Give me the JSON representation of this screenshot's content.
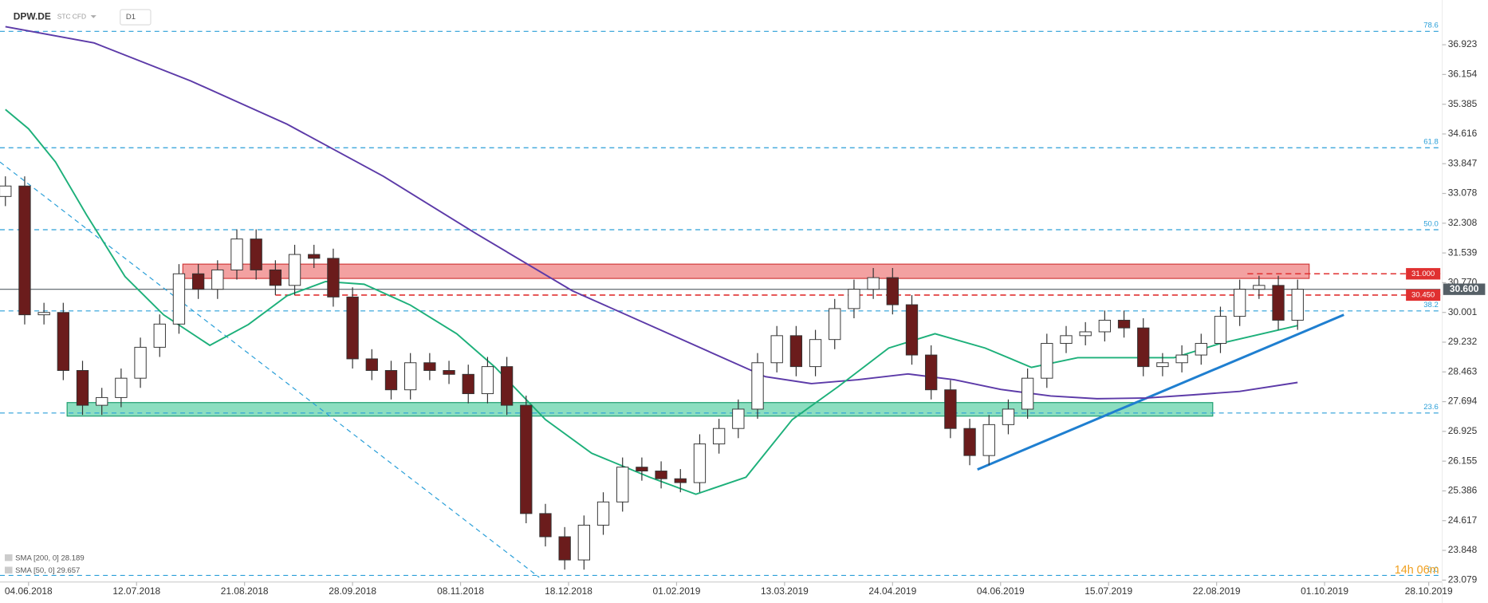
{
  "header": {
    "symbol": "DPW.DE",
    "instrument": "STC CFD",
    "timeframe": "D1"
  },
  "chart_data": {
    "type": "candlestick",
    "xlim": [
      -7.4,
      366
    ],
    "ylim": [
      23.03,
      38.08
    ],
    "xticks": [
      {
        "value": 0,
        "label": "04.06.2018"
      },
      {
        "value": 28,
        "label": "12.07.2018"
      },
      {
        "value": 56,
        "label": "21.08.2018"
      },
      {
        "value": 84,
        "label": "28.09.2018"
      },
      {
        "value": 112,
        "label": "08.11.2018"
      },
      {
        "value": 140,
        "label": "18.12.2018"
      },
      {
        "value": 168,
        "label": "01.02.2019"
      },
      {
        "value": 196,
        "label": "13.03.2019"
      },
      {
        "value": 224,
        "label": "24.04.2019"
      },
      {
        "value": 252,
        "label": "04.06.2019"
      },
      {
        "value": 280,
        "label": "15.07.2019"
      },
      {
        "value": 308,
        "label": "22.08.2019"
      },
      {
        "value": 336,
        "label": "01.10.2019"
      },
      {
        "value": 363,
        "label": "28.10.2019"
      }
    ],
    "yticks": [
      23.079,
      23.848,
      24.617,
      25.386,
      26.155,
      26.925,
      27.694,
      28.463,
      29.232,
      30.001,
      {
        "value": 30.77,
        "label": "30.770"
      },
      31.539,
      32.308,
      33.078,
      33.847,
      34.616,
      35.385,
      36.154,
      36.923
    ],
    "x": [
      -6,
      -1,
      4,
      9,
      14,
      19,
      24,
      29,
      34,
      39,
      44,
      49,
      54,
      59,
      64,
      69,
      74,
      79,
      84,
      89,
      94,
      99,
      104,
      109,
      114,
      119,
      124,
      129,
      134,
      139,
      144,
      149,
      154,
      159,
      164,
      169,
      174,
      179,
      184,
      189,
      194,
      199,
      204,
      209,
      214,
      219,
      224,
      229,
      234,
      239,
      244,
      249,
      254,
      259,
      264,
      269,
      274,
      279,
      284,
      289,
      294,
      299,
      304,
      309,
      314,
      319,
      324,
      329
    ],
    "open": [
      33.0,
      33.27,
      29.94,
      30.0,
      28.5,
      27.6,
      27.8,
      28.3,
      29.1,
      29.7,
      31.0,
      30.6,
      31.1,
      31.9,
      31.1,
      30.7,
      31.5,
      31.4,
      30.4,
      28.8,
      28.5,
      28.0,
      28.7,
      28.5,
      28.4,
      27.9,
      28.6,
      27.6,
      24.8,
      24.2,
      23.6,
      24.5,
      25.1,
      26.0,
      25.9,
      25.7,
      25.6,
      26.6,
      27.0,
      27.5,
      28.7,
      29.4,
      28.6,
      29.3,
      30.1,
      30.6,
      30.9,
      30.2,
      28.9,
      28.0,
      27.0,
      26.3,
      27.1,
      27.5,
      28.3,
      29.2,
      29.4,
      29.5,
      29.8,
      29.6,
      28.6,
      28.7,
      28.9,
      29.2,
      29.9,
      30.6,
      30.7,
      29.8
    ],
    "high": [
      33.52,
      33.52,
      30.25,
      30.25,
      28.75,
      28.05,
      28.55,
      29.35,
      29.95,
      31.25,
      31.25,
      31.35,
      32.15,
      32.15,
      31.35,
      31.75,
      31.75,
      31.65,
      30.65,
      29.05,
      28.75,
      28.95,
      28.95,
      28.75,
      28.65,
      28.85,
      28.85,
      27.85,
      25.05,
      24.45,
      24.75,
      25.35,
      26.25,
      26.25,
      26.15,
      25.95,
      26.85,
      27.25,
      27.75,
      28.95,
      29.65,
      29.65,
      29.55,
      30.35,
      30.85,
      31.15,
      31.15,
      30.45,
      29.15,
      28.25,
      27.25,
      27.35,
      27.75,
      28.55,
      29.45,
      29.65,
      29.75,
      30.05,
      30.05,
      29.85,
      28.95,
      29.15,
      29.45,
      30.15,
      30.85,
      30.95,
      30.95,
      30.85
    ],
    "low": [
      32.75,
      29.69,
      29.69,
      28.25,
      27.35,
      27.35,
      27.55,
      28.05,
      28.85,
      29.45,
      30.35,
      30.35,
      30.85,
      30.85,
      30.45,
      30.45,
      31.15,
      30.15,
      28.55,
      28.25,
      27.75,
      27.75,
      28.25,
      28.15,
      27.65,
      27.65,
      27.35,
      24.55,
      23.95,
      23.35,
      23.35,
      24.25,
      24.85,
      25.65,
      25.45,
      25.35,
      25.35,
      26.35,
      26.75,
      27.25,
      28.45,
      28.35,
      28.35,
      29.05,
      29.85,
      30.35,
      29.95,
      28.65,
      27.75,
      26.75,
      26.05,
      26.05,
      26.85,
      27.25,
      28.05,
      28.95,
      29.15,
      29.25,
      29.35,
      28.35,
      28.35,
      28.45,
      28.65,
      28.95,
      29.65,
      30.35,
      29.55,
      29.55
    ],
    "close": [
      33.27,
      29.94,
      30.0,
      28.5,
      27.6,
      27.8,
      28.3,
      29.1,
      29.7,
      31.0,
      30.6,
      31.1,
      31.9,
      31.1,
      30.7,
      31.5,
      31.4,
      30.4,
      28.8,
      28.5,
      28.0,
      28.7,
      28.5,
      28.4,
      27.9,
      28.6,
      27.6,
      24.8,
      24.2,
      23.6,
      24.5,
      25.1,
      26.0,
      25.9,
      25.7,
      25.6,
      26.6,
      27.0,
      27.5,
      28.7,
      29.4,
      28.6,
      29.3,
      30.1,
      30.6,
      30.9,
      30.2,
      28.9,
      28.0,
      27.0,
      26.3,
      27.1,
      27.5,
      28.3,
      29.2,
      29.4,
      29.5,
      29.8,
      29.6,
      28.6,
      28.7,
      28.9,
      29.2,
      29.9,
      30.6,
      30.7,
      29.8,
      30.6
    ],
    "bull_color": "#ffffff",
    "bear_color": "#6b1c1c",
    "overlays": [
      {
        "name": "SMA [200, 0]  28.189",
        "color": "#5c3aa8",
        "x": [
          -6,
          17,
          42,
          67,
          92,
          116,
          141,
          166,
          191,
          203,
          215,
          228,
          240,
          252,
          265,
          277,
          290,
          302,
          314,
          329
        ],
        "values": [
          37.39,
          36.97,
          35.99,
          34.87,
          33.52,
          32.04,
          30.56,
          29.45,
          28.34,
          28.16,
          28.26,
          28.41,
          28.26,
          28.01,
          27.84,
          27.77,
          27.79,
          27.87,
          27.96,
          28.19
        ]
      },
      {
        "name": "SMA [50, 0]  29.657",
        "color": "#1db07a",
        "x": [
          -6,
          0,
          7,
          15,
          25,
          35,
          47,
          57,
          67,
          77,
          87,
          99,
          111,
          121,
          134,
          146,
          161,
          173,
          186,
          198,
          210,
          223,
          235,
          248,
          260,
          272,
          285,
          297,
          309,
          329
        ],
        "values": [
          35.25,
          34.75,
          33.89,
          32.53,
          30.93,
          29.94,
          29.15,
          29.69,
          30.43,
          30.8,
          30.73,
          30.19,
          29.45,
          28.58,
          27.23,
          26.36,
          25.74,
          25.3,
          25.74,
          27.23,
          28.09,
          29.08,
          29.45,
          29.08,
          28.58,
          28.83,
          28.83,
          28.83,
          29.2,
          29.66
        ]
      }
    ],
    "levels": [
      {
        "label": "78.6",
        "value": 37.27
      },
      {
        "label": "61.8",
        "value": 34.26
      },
      {
        "label": "50.0",
        "value": 32.14
      },
      {
        "label": "38.2",
        "value": 30.04
      },
      {
        "label": "23.6",
        "value": 27.4
      },
      {
        "label": "0.0",
        "value": 23.2
      }
    ],
    "level_color": "#2a9fd8",
    "zones": [
      {
        "color": "#f08a8a",
        "stroke": "#d03a3a",
        "top": 31.25,
        "bottom": 30.88,
        "x": [
          40,
          332
        ]
      },
      {
        "color": "#6fd6b0",
        "stroke": "#1f9f70",
        "top": 27.67,
        "bottom": 27.32,
        "x": [
          10,
          307
        ]
      }
    ],
    "price_lines": [
      {
        "value": 31,
        "label": "31.000",
        "color": "#e03030",
        "dashed": true,
        "from": 316
      },
      {
        "value": 30.45,
        "label": "30.450",
        "color": "#e03030",
        "dashed": true,
        "from": 64
      },
      {
        "value": 30.6,
        "label": "30.600",
        "color": "#555f66",
        "dashed": false,
        "from": -7.4
      }
    ],
    "trendlines": [
      {
        "x": [
          246,
          341
        ],
        "values": [
          25.94,
          29.94
        ],
        "color": "#1f7fd0",
        "dashed": false
      },
      {
        "x": [
          -7.4,
          132.4
        ],
        "values": [
          33.89,
          23.15
        ],
        "color": "#2a9fd8",
        "dashed": true
      }
    ],
    "timer": "14h 06m"
  }
}
